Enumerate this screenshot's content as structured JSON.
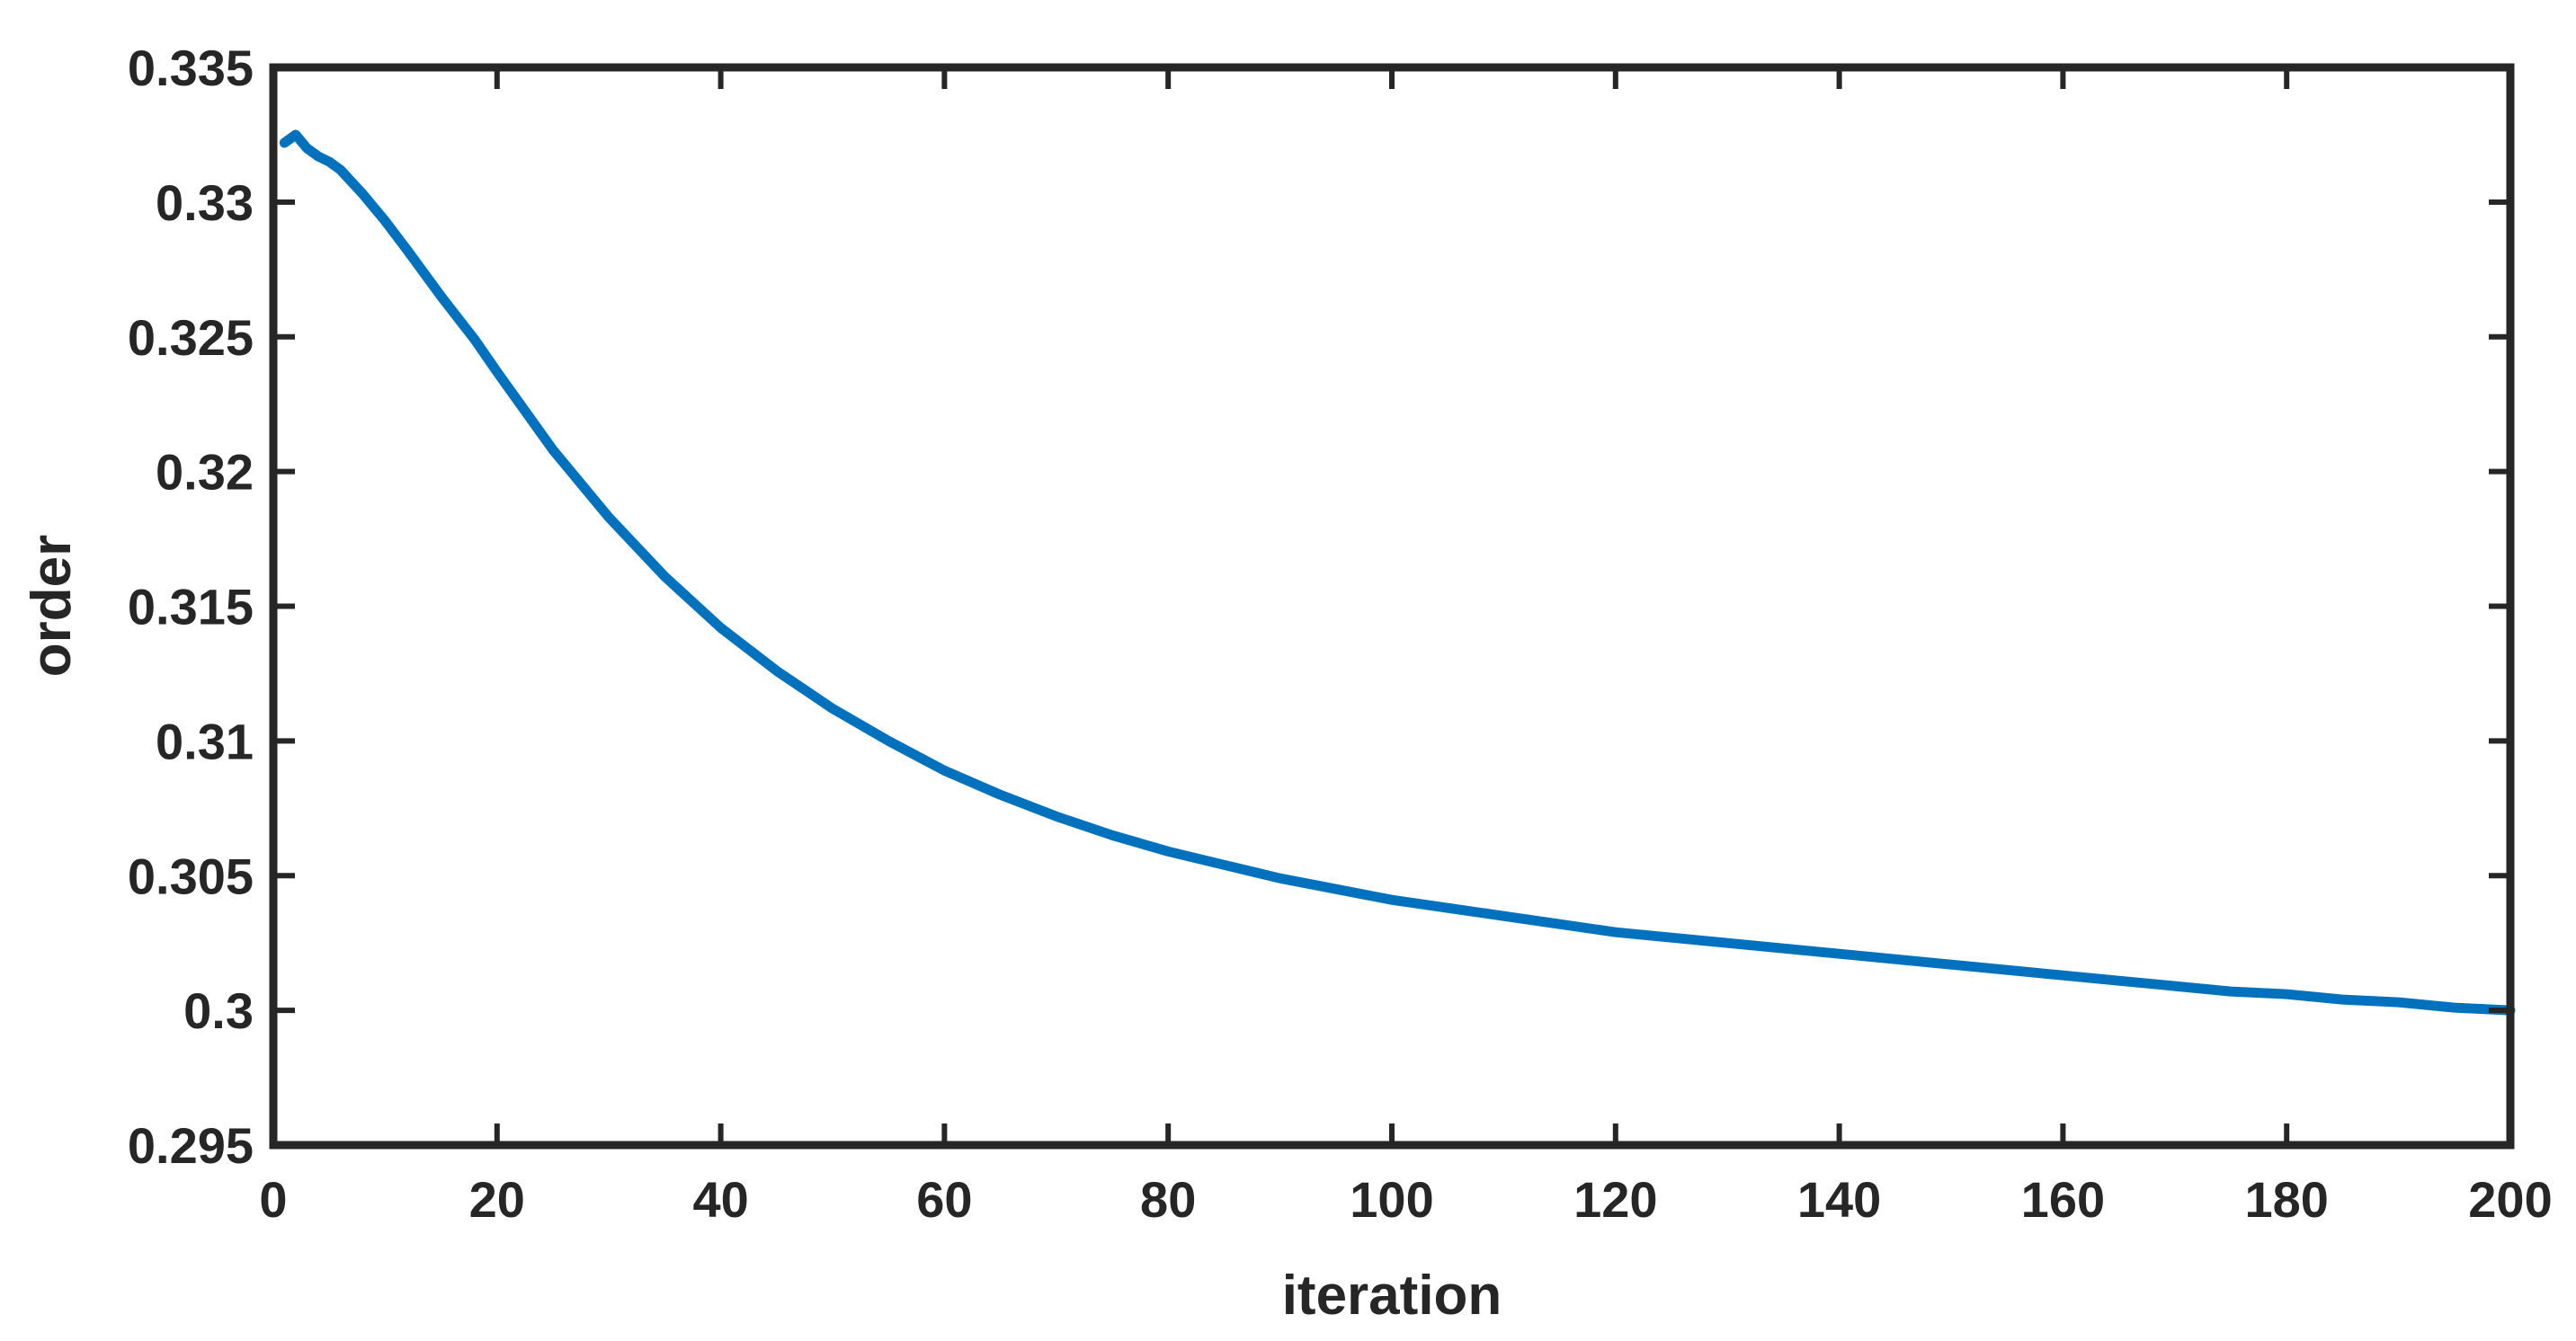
{
  "chart_data": {
    "type": "line",
    "title": "",
    "xlabel": "iteration",
    "ylabel": "order",
    "xlim": [
      0,
      200
    ],
    "ylim": [
      0.295,
      0.335
    ],
    "x_ticks": [
      0,
      20,
      40,
      60,
      80,
      100,
      120,
      140,
      160,
      180,
      200
    ],
    "x_tick_labels": [
      "0",
      "20",
      "40",
      "60",
      "80",
      "100",
      "120",
      "140",
      "160",
      "180",
      "200"
    ],
    "y_ticks": [
      0.295,
      0.3,
      0.305,
      0.31,
      0.315,
      0.32,
      0.325,
      0.33,
      0.335
    ],
    "y_tick_labels": [
      "0.295",
      "0.3",
      "0.305",
      "0.31",
      "0.315",
      "0.32",
      "0.325",
      "0.33",
      "0.335"
    ],
    "grid": false,
    "legend": "none",
    "series": [
      {
        "color": "#0072BD",
        "x": [
          1,
          2,
          3,
          4,
          5,
          6,
          8,
          10,
          12,
          15,
          18,
          20,
          25,
          30,
          35,
          40,
          45,
          50,
          55,
          60,
          65,
          70,
          75,
          80,
          85,
          90,
          95,
          100,
          105,
          110,
          115,
          120,
          125,
          130,
          135,
          140,
          145,
          150,
          155,
          160,
          165,
          170,
          175,
          180,
          185,
          190,
          195,
          200
        ],
        "y": [
          0.3322,
          0.3325,
          0.332,
          0.3317,
          0.3315,
          0.3312,
          0.3303,
          0.3293,
          0.3282,
          0.3265,
          0.3249,
          0.3237,
          0.3208,
          0.3183,
          0.3161,
          0.3142,
          0.3126,
          0.3112,
          0.31,
          0.3089,
          0.308,
          0.3072,
          0.3065,
          0.3059,
          0.3054,
          0.3049,
          0.3045,
          0.3041,
          0.3038,
          0.3035,
          0.3032,
          0.3029,
          0.3027,
          0.3025,
          0.3023,
          0.3021,
          0.3019,
          0.3017,
          0.3015,
          0.3013,
          0.3011,
          0.3009,
          0.3007,
          0.3006,
          0.3004,
          0.3003,
          0.3001,
          0.3
        ]
      }
    ]
  }
}
